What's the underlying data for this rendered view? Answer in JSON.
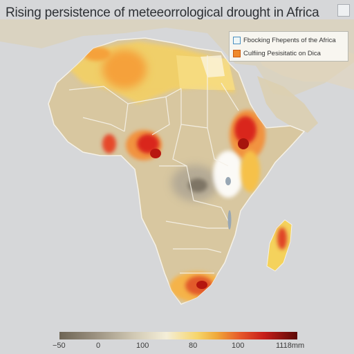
{
  "title": "Rising persistence of meteeorrological drought in Africa",
  "legend": [
    {
      "label": "Fbocking Fhepents of the Africa",
      "color": "#eef6f7"
    },
    {
      "label": "Culfiing Pesisitatic on Dica",
      "color": "#f08a2c"
    }
  ],
  "colorbar": {
    "ticks": [
      "−50",
      "0",
      "100",
      "80",
      "100",
      "1118mm"
    ],
    "colors": [
      "#6e6555",
      "#d3cbb6",
      "#f6d56a",
      "#f0a93a",
      "#e6582a",
      "#c71e1a",
      "#5b0906"
    ]
  },
  "map_colors": {
    "ocean": "#d6d7d9",
    "land": "#d8c7a0",
    "border": "#f3efe6"
  }
}
